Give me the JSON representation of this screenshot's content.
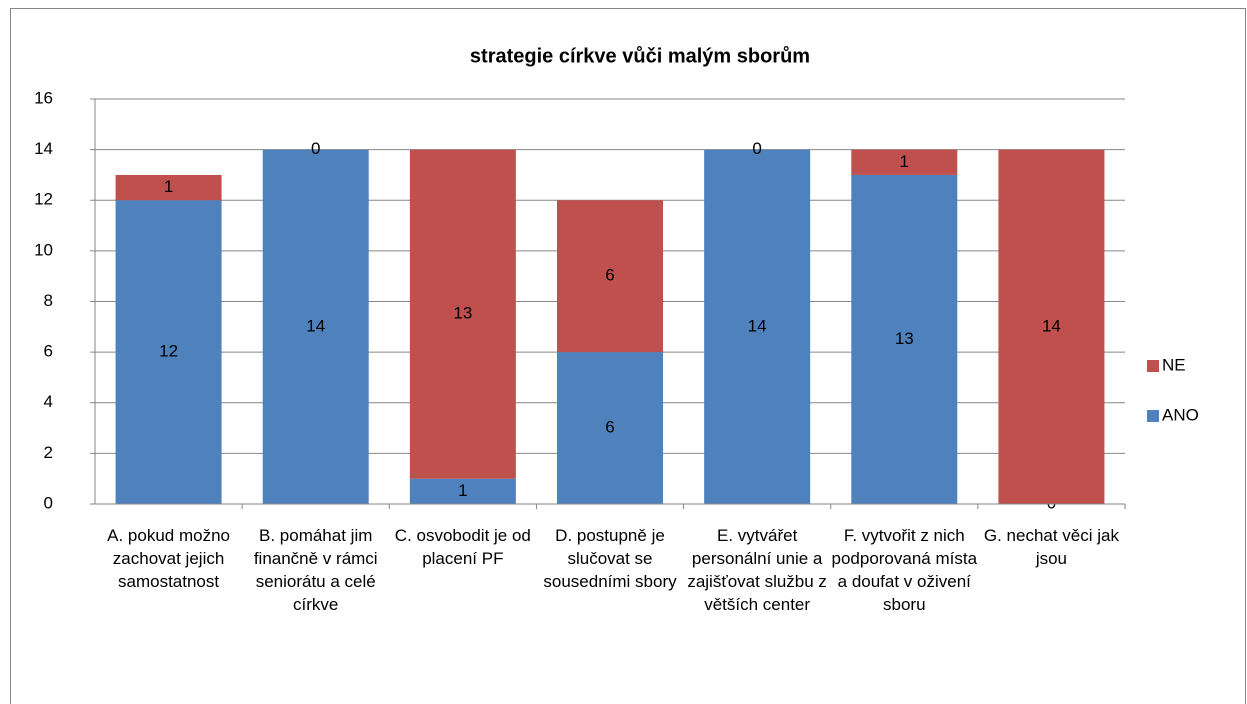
{
  "chart_data": {
    "type": "stacked_bar",
    "title": "strategie církve vůči malým sborům",
    "categories": [
      "A. pokud možno zachovat jejich samostatnost",
      "B. pomáhat jim finančně v rámci seniorátu a celé církve",
      "C. osvobodit je od placení PF",
      "D. postupně je slučovat se sousedními sbory",
      "E. vytvářet personální unie a zajišťovat službu z větších center",
      "F. vytvořit z nich podporovaná místa a doufat v oživení sboru",
      "G. nechat věci jak jsou"
    ],
    "series": [
      {
        "name": "ANO",
        "color": "#4f81bd",
        "values": [
          12,
          14,
          1,
          6,
          14,
          13,
          0
        ]
      },
      {
        "name": "NE",
        "color": "#c0504d",
        "values": [
          1,
          0,
          13,
          6,
          0,
          1,
          14
        ]
      }
    ],
    "ylim": [
      0,
      16
    ],
    "yticks": [
      0,
      2,
      4,
      6,
      8,
      10,
      12,
      14,
      16
    ],
    "grid": true,
    "legend": "right"
  }
}
